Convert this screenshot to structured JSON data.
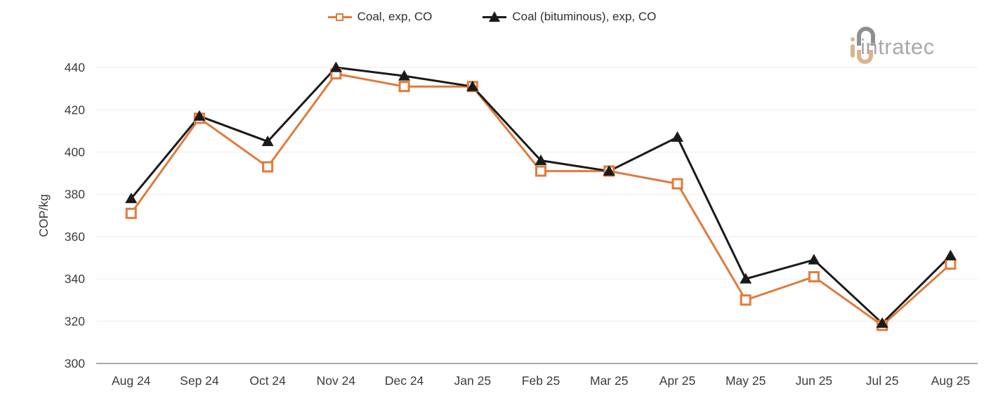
{
  "logo": {
    "text": "intratec"
  },
  "legend": {
    "items": [
      {
        "label": "Coal, exp, CO",
        "color": "#e07b3c",
        "marker": "hollow-square"
      },
      {
        "label": "Coal (bituminous), exp, CO",
        "color": "#1a1a1a",
        "marker": "filled-triangle"
      }
    ]
  },
  "chart_data": {
    "type": "line",
    "title": "",
    "xlabel": "",
    "ylabel": "COP/kg",
    "categories": [
      "Aug 24",
      "Sep 24",
      "Oct 24",
      "Nov 24",
      "Dec 24",
      "Jan 25",
      "Feb 25",
      "Mar 25",
      "Apr 25",
      "May 25",
      "Jun 25",
      "Jul 25",
      "Aug 25"
    ],
    "series": [
      {
        "name": "Coal, exp, CO",
        "color": "#e07b3c",
        "marker": "hollow-square",
        "values": [
          371,
          416,
          393,
          437,
          431,
          431,
          391,
          391,
          385,
          330,
          341,
          318,
          347
        ]
      },
      {
        "name": "Coal (bituminous), exp, CO",
        "color": "#1a1a1a",
        "marker": "filled-triangle",
        "values": [
          378,
          417,
          405,
          440,
          436,
          431,
          396,
          391,
          407,
          340,
          349,
          319,
          351
        ]
      }
    ],
    "ylim": [
      300,
      440
    ],
    "ytick_step": 20,
    "grid": "horizontal",
    "legend_position": "top-center"
  },
  "colors": {
    "series_1": "#e07b3c",
    "series_2": "#1a1a1a",
    "gridline": "#ededed",
    "axis_line": "#8c8c8c",
    "tick_text": "#3c3c3c",
    "legend_text": "#2e2e2e",
    "logo_gray": "#8f8f8f",
    "logo_tan": "#d9b48e",
    "logo_text_gray": "#a9a9a9",
    "background": "#ffffff"
  }
}
